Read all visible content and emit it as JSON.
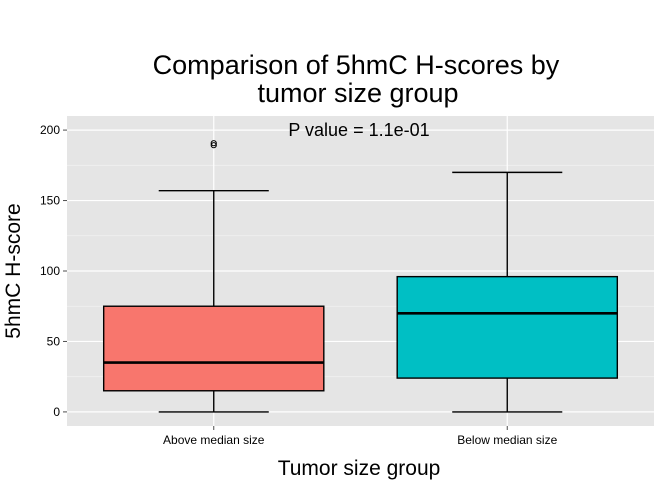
{
  "chart_data": {
    "type": "box",
    "title_lines": [
      "Comparison of 5hmC H-scores by",
      "tumor size group"
    ],
    "xlabel": "Tumor size group",
    "ylabel": "5hmC H-score",
    "categories": [
      "Above median size",
      "Below median size"
    ],
    "ylim": [
      -10,
      210
    ],
    "yticks": [
      0,
      50,
      100,
      150,
      200
    ],
    "grid": true,
    "annotation": "P value = 1.1e-01",
    "boxes": [
      {
        "category": "Above median size",
        "color": "#F8766D",
        "min": 0,
        "q1": 15,
        "median": 35,
        "q3": 75,
        "max": 157,
        "outliers": [
          190
        ]
      },
      {
        "category": "Below median size",
        "color": "#00BFC4",
        "min": 0,
        "q1": 24,
        "median": 70,
        "q3": 96,
        "max": 170,
        "outliers": []
      }
    ]
  }
}
